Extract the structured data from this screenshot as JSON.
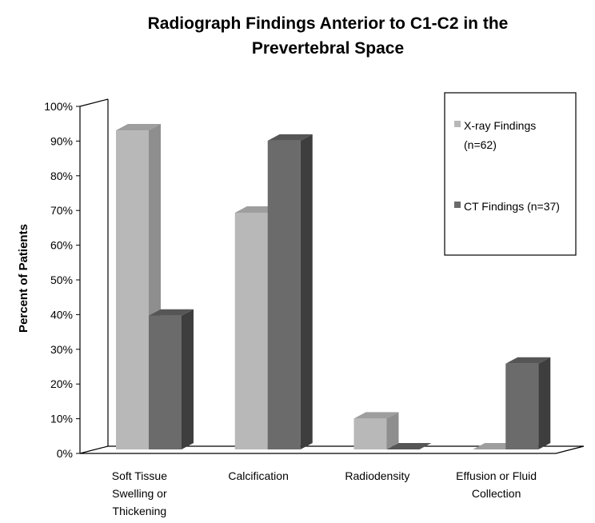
{
  "chart_data": {
    "type": "bar",
    "title_lines": [
      "Radiograph Findings Anterior to C1-C2 in the",
      "Prevertebral Space"
    ],
    "ylabel": "Percent of Patients",
    "xlabel": "",
    "ylim": [
      0,
      100
    ],
    "y_ticks": [
      "0%",
      "10%",
      "20%",
      "30%",
      "40%",
      "50%",
      "60%",
      "70%",
      "80%",
      "90%",
      "100%"
    ],
    "categories": [
      [
        "Soft Tissue",
        "Swelling or",
        "Thickening"
      ],
      [
        "Calcification"
      ],
      [
        "Radiodensity"
      ],
      [
        "Effusion or Fluid",
        "Collection"
      ]
    ],
    "series": [
      {
        "name": "X-ray Findings (n=62)",
        "legend_lines": [
          "X-ray Findings",
          "(n=62)"
        ],
        "values": [
          93,
          69,
          9,
          0
        ],
        "color": "#b8b8b8",
        "side_color": "#8e8e8e",
        "top_color": "#9e9e9e"
      },
      {
        "name": "CT Findings (n=37)",
        "legend_lines": [
          "CT Findings (n=37)"
        ],
        "values": [
          39,
          90,
          0,
          25
        ],
        "color": "#6b6b6b",
        "side_color": "#3e3e3e",
        "top_color": "#565656"
      }
    ],
    "legend_position": "top-right",
    "grid": false
  }
}
